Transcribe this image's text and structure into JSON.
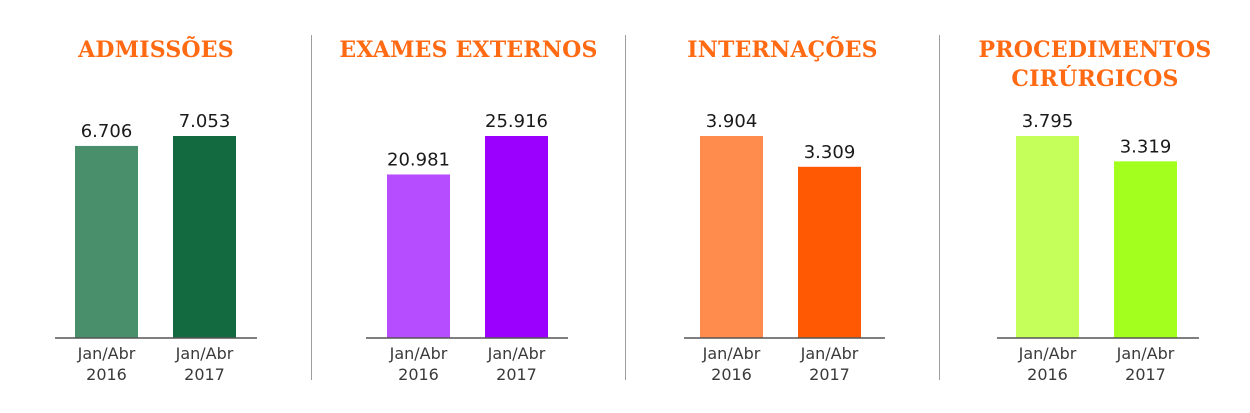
{
  "chart_data": [
    {
      "type": "bar",
      "title": "ADMISSÕES",
      "title_lines": [
        "ADMISSÕES"
      ],
      "categories": [
        [
          "Jan/Abr",
          "2016"
        ],
        [
          "Jan/Abr",
          "2017"
        ]
      ],
      "values": [
        6706,
        7053
      ],
      "value_labels": [
        "6.706",
        "7.053"
      ],
      "colors": [
        "#4a8f6c",
        "#136940"
      ]
    },
    {
      "type": "bar",
      "title": "EXAMES EXTERNOS",
      "title_lines": [
        "EXAMES EXTERNOS"
      ],
      "categories": [
        [
          "Jan/Abr",
          "2016"
        ],
        [
          "Jan/Abr",
          "2017"
        ]
      ],
      "values": [
        20981,
        25916
      ],
      "value_labels": [
        "20.981",
        "25.916"
      ],
      "colors": [
        "#b64dff",
        "#9b00ff"
      ]
    },
    {
      "type": "bar",
      "title": "INTERNAÇÕES",
      "title_lines": [
        "INTERNAÇÕES"
      ],
      "categories": [
        [
          "Jan/Abr",
          "2016"
        ],
        [
          "Jan/Abr",
          "2017"
        ]
      ],
      "values": [
        3904,
        3309
      ],
      "value_labels": [
        "3.904",
        "3.309"
      ],
      "colors": [
        "#ff8b4d",
        "#ff5a03"
      ]
    },
    {
      "type": "bar",
      "title": "PROCEDIMENTOS CIRÚRGICOS",
      "title_lines": [
        "PROCEDIMENTOS",
        "CIRÚRGICOS"
      ],
      "categories": [
        [
          "Jan/Abr",
          "2016"
        ],
        [
          "Jan/Abr",
          "2017"
        ]
      ],
      "values": [
        3795,
        3319
      ],
      "value_labels": [
        "3.795",
        "3.319"
      ],
      "colors": [
        "#c4ff5a",
        "#a3ff1e"
      ]
    }
  ],
  "colors": {
    "title": "#ff6a13",
    "axis": "#555555",
    "divider": "#9e9e9e"
  }
}
